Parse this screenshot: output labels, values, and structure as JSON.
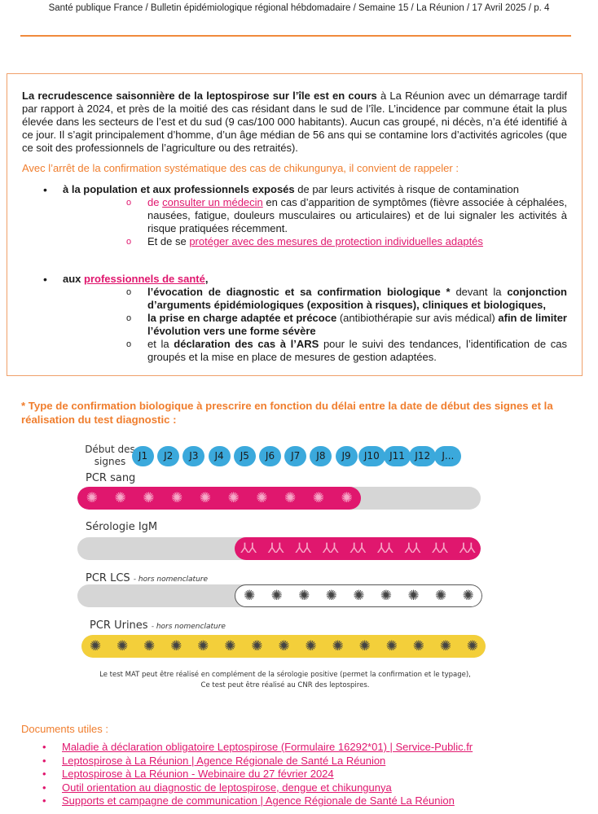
{
  "header": "Santé publique France / Bulletin épidémiologique régional hébdomadaire / Semaine 15 / La Réunion / 17 Avril 2025 / p. 4",
  "box": {
    "intro_bold": "La recrudescence saisonnière de la leptospirose sur l’île est en cours",
    "intro_rest": " à La Réunion avec un démarrage tardif par rapport à 2024, et près de la moitié des cas résidant dans le sud de l’île. L’incidence par commune était la plus élevée dans les secteurs de l’est et du sud (9 cas/100 000 habitants). Aucun cas groupé, ni décès, n’a été identifié à ce jour. Il s’agit principalement d’homme, d’un âge médian de 56 ans qui se contamine lors d’activités agricoles (que ce soit des professionnels de l’agriculture ou des retraités).",
    "reminder": "Avec l’arrêt de la confirmation systématique des cas de chikungunya, il convient de rappeler :",
    "b1_bold": "à la population et aux professionnels exposés",
    "b1_rest": " de par leurs activités à risque de contamination",
    "b1_s1_pre": "de ",
    "b1_s1_link": "consulter un médecin",
    "b1_s1_rest": " en cas d’apparition de symptômes (fièvre associée à céphalées, nausées, fatigue, douleurs musculaires ou articulaires) et de lui signaler les activités à risque pratiquées récemment.",
    "b1_s2_pre": "Et de se ",
    "b1_s2_link": "protéger avec des mesures de protection individuelles adaptés",
    "b2_pre": "aux ",
    "b2_link": "professionnels de santé",
    "b2_post": ",",
    "b2_s1_a": "l’évocation de  diagnostic et sa confirmation biologique *",
    "b2_s1_b": " devant la ",
    "b2_s1_c": "conjonction d’arguments épidémiologiques (exposition à risques), cliniques et biologiques,",
    "b2_s2_a": "la prise en charge adaptée et précoce",
    "b2_s2_b": " (antibiothérapie sur avis médical) ",
    "b2_s2_c": "afin de limiter l’évolution vers une forme sévère",
    "b2_s3_a": "et la ",
    "b2_s3_b": "déclaration des cas à l’ARS",
    "b2_s3_c": " pour le suivi des tendances, l’identification de cas groupés et la mise en place de mesures de gestion adaptées."
  },
  "infographic": {
    "title": "* Type de confirmation biologique à prescrire en fonction du délai entre la date de début des signes et la réalisation du test diagnostic :",
    "row_label": "Début des signes",
    "days": [
      "J1",
      "J2",
      "J3",
      "J4",
      "J5",
      "J6",
      "J7",
      "J8",
      "J9",
      "J10",
      "J11",
      "J12",
      "J..."
    ],
    "tests": [
      {
        "label": "PCR sang",
        "note": "",
        "from_day": 1,
        "to_day": 9,
        "fill_color": "#E0176E",
        "icon": "bacteria-icon"
      },
      {
        "label": "Sérologie IgM",
        "note": "",
        "from_day": 5,
        "to_day": 13,
        "fill_color": "#E0176E",
        "icon": "antibody-icon"
      },
      {
        "label": "PCR LCS",
        "note": "- hors nomenclature",
        "from_day": 5,
        "to_day": 13,
        "fill_color": "#FFFFFF",
        "icon": "bacteria-icon"
      },
      {
        "label": "PCR Urines",
        "note": "- hors nomenclature",
        "from_day": 1,
        "to_day": 13,
        "fill_color": "#F3CF3A",
        "icon": "bacteria-icon"
      }
    ],
    "caption_1": "Le test MAT peut être réalisé en complément de la sérologie positive (permet la confirmation et le typage),",
    "caption_2": "Ce test peut être réalisé au CNR des leptospires."
  },
  "documents": {
    "title": "Documents utiles :",
    "links": [
      "Maladie à déclaration obligatoire Leptospirose (Formulaire 16292*01) | Service-Public.fr",
      "Leptospirose à La Réunion | Agence Régionale de Santé La Réunion",
      "Leptospirose à La Réunion - Webinaire du 27 février 2024",
      "Outil orientation au diagnostic de leptospirose, dengue et chikungunya",
      "Supports et campagne de communication | Agence Régionale de Santé La Réunion"
    ]
  },
  "colors": {
    "accent": "#F07E2E",
    "link": "#E0176E",
    "day_badge": "#3BA9DC",
    "track": "#D6D6D6"
  }
}
